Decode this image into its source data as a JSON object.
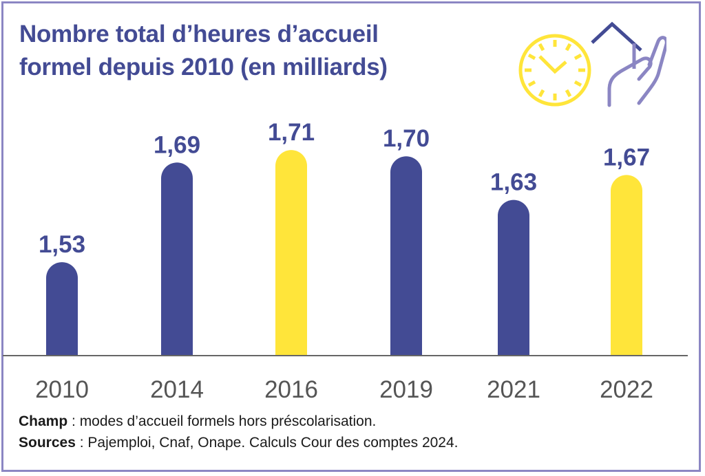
{
  "chart_data": {
    "type": "bar",
    "title": "Nombre total d’heures d’accueil formel depuis 2010 (en milliards)",
    "title_lines": [
      "Nombre total d’heures d’accueil",
      "formel depuis 2010 (en milliards)"
    ],
    "xlabel": "",
    "ylabel": "",
    "categories": [
      "2010",
      "2014",
      "2016",
      "2019",
      "2021",
      "2022"
    ],
    "values": [
      1.53,
      1.69,
      1.71,
      1.7,
      1.63,
      1.67
    ],
    "value_labels": [
      "1,53",
      "1,69",
      "1,71",
      "1,70",
      "1,63",
      "1,67"
    ],
    "bar_colors": [
      "#434b94",
      "#434b94",
      "#ffe53a",
      "#434b94",
      "#434b94",
      "#ffe53a"
    ],
    "ylim": [
      1.38,
      1.74
    ],
    "grid": false,
    "legend": "none"
  },
  "colors": {
    "primary": "#434b94",
    "highlight": "#ffe53a",
    "frame": "#8b86c3",
    "axis": "#666666"
  },
  "icon": {
    "name": "clock-house-hand-icon"
  },
  "notes": {
    "champ_label": "Champ",
    "champ_text": " : modes d’accueil formels hors préscolarisation.",
    "sources_label": "Sources",
    "sources_text": " : Pajemploi, Cnaf, Onape. Calculs Cour des comptes 2024."
  }
}
